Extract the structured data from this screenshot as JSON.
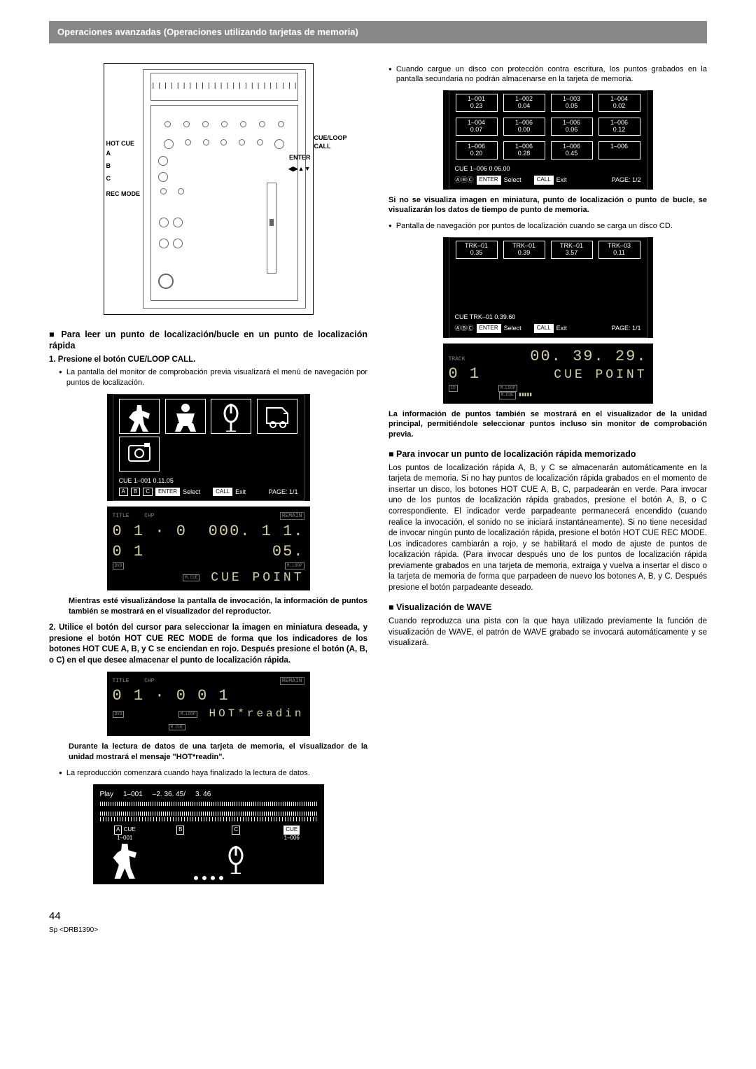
{
  "header": "Operaciones avanzadas (Operaciones utilizando tarjetas de memoria)",
  "device_labels": {
    "hot_cue": "HOT CUE",
    "a": "A",
    "b": "B",
    "c": "C",
    "rec_mode": "REC MODE",
    "cue_loop_call": "CUE/LOOP CALL",
    "enter": "ENTER",
    "arrows": "◀▶▲▼"
  },
  "left": {
    "h1": "■ Para leer un punto de localización/bucle en un punto de localización rápida",
    "step1": "1. Presione el botón CUE/LOOP CALL.",
    "bullet1": "La pantalla del monitor de comprobación previa visualizará el menú de navegación por puntos de localización.",
    "callout_screen": {
      "thumbs": [
        "",
        "",
        "",
        ""
      ],
      "thumbs_camera": "",
      "cue_line": "CUE    1–001   0.11.05",
      "abc": "A B C",
      "enter": "ENTER",
      "select": "Select",
      "call": "CALL",
      "exit": "Exit",
      "page": "PAGE: 1/1"
    },
    "lcd1": {
      "title": "TITLE",
      "chp": "CHP",
      "track_seg": "0 1 · 0 0 1",
      "time_seg": "000. 1 1. 05.",
      "remain": "REMAIN",
      "cue_point": "CUE  POINT",
      "tags": [
        "DVD",
        "M.LOOP",
        "M.CUE"
      ]
    },
    "note1": "Mientras esté visualizándose la pantalla de invocación, la información de puntos también se mostrará en el visualizador del reproductor.",
    "step2": "2. Utilice el botón del cursor para seleccionar la imagen en miniatura deseada, y presione el botón HOT CUE REC MODE de forma que los indicadores de los botones HOT CUE A, B, y C se enciendan en rojo. Después presione el botón (A, B, o C) en el que desee almacenar el punto de localización rápida.",
    "lcd2": {
      "title": "TITLE",
      "chp": "CHP",
      "track_seg": "0 1 · 0 0 1",
      "remain": "REMAIN",
      "msg": "HOT*readin",
      "tags": [
        "DVD",
        "M.LOOP",
        "M.CUE"
      ]
    },
    "note2": "Durante la lectura de datos de una tarjeta de memoria, el visualizador de la unidad mostrará el mensaje \"HOT*readin\".",
    "bullet2": "La reproducción comenzará cuando haya finalizado la lectura de datos.",
    "play_screen": {
      "top": [
        "Play",
        "1–001",
        "–2. 36. 45/",
        "3. 46"
      ],
      "cells": [
        {
          "tag": "A",
          "sub": "CUE",
          "id": "1–001",
          "dancer": true
        },
        {
          "tag": "B",
          "sub": "",
          "id": "",
          "dancer": false
        },
        {
          "tag": "C",
          "sub": "",
          "id": "",
          "dancer": true
        },
        {
          "tag": "CUE",
          "sub": "",
          "id": "1–006",
          "dancer": false
        }
      ]
    }
  },
  "right": {
    "bullet_top": "Cuando cargue un disco con protección contra escritura, los puntos grabados en la pantalla secundaria no podrán almacenarse en la tarjeta de memoria.",
    "grid_screen": {
      "rows": [
        [
          [
            "1–001",
            "0.23"
          ],
          [
            "1–002",
            "0.04"
          ],
          [
            "1–003",
            "0.05"
          ],
          [
            "1–004",
            "0.02"
          ]
        ],
        [
          [
            "1–004",
            "0.07"
          ],
          [
            "1–006",
            "0.00"
          ],
          [
            "1–006",
            "0.06"
          ],
          [
            "1–006",
            "0.12"
          ]
        ],
        [
          [
            "1–006",
            "0.20"
          ],
          [
            "1–006",
            "0.28"
          ],
          [
            "1–006",
            "0.45"
          ],
          [
            "1–006",
            ""
          ]
        ]
      ],
      "cue_line": "CUE    1–006   0.06.00",
      "enter": "ENTER",
      "select": "Select",
      "call": "CALL",
      "exit": "Exit",
      "page": "PAGE: 1/2"
    },
    "note_grid": "Si no se visualiza imagen en miniatura, punto de localización o punto de bucle, se visualizarán los datos de tiempo de punto de memoria.",
    "bullet_cd": "Pantalla de navegación por puntos de localización cuando se carga un disco CD.",
    "cd_screen": {
      "row": [
        [
          "TRK–01",
          "0.35"
        ],
        [
          "TRK–01",
          "0.39"
        ],
        [
          "TRK–01",
          "3.57"
        ],
        [
          "TRK–03",
          "0.11"
        ]
      ],
      "cue_line": "CUE    TRK–01  0.39.60",
      "enter": "ENTER",
      "select": "Select",
      "call": "CALL",
      "exit": "Exit",
      "page": "PAGE: 1/1"
    },
    "lcd_cd": {
      "track_seg": "0 1",
      "time_seg": "00. 39. 29.",
      "cue_point": "CUE  POINT",
      "tags": [
        "CD",
        "M.LOOP",
        "M.CUE"
      ]
    },
    "note_cd": "La información de puntos también se mostrará en el visualizador de la unidad principal, permitiéndole seleccionar puntos incluso sin monitor de comprobación previa.",
    "h2": "■ Para invocar un punto de localización rápida memorizado",
    "body2": "Los puntos de localización rápida A, B, y C se almacenarán automáticamente en la tarjeta de memoria.  Si no hay puntos de localización rápida grabados en el momento de insertar un disco, los botones HOT CUE A, B, C, parpadearán en verde. Para invocar uno de los puntos de localización rápida grabados, presione el botón A, B, o C correspondiente. El indicador verde parpadeante permanecerá encendido (cuando realice la invocación, el sonido no se iniciará instantáneamente). Si no tiene necesidad de invocar ningún punto de localización rápida, presione el botón HOT CUE REC MODE. Los indicadores cambiarán a rojo, y se habilitará el modo de ajuste de puntos de localización rápida. (Para invocar después uno de los puntos de localización rápida previamente grabados en una tarjeta de memoria, extraiga y vuelva a insertar el disco o la tarjeta de memoria de forma que parpadeen de nuevo los botones A, B, y C. Después presione el botón parpadeante deseado.",
    "h3": "■ Visualización de WAVE",
    "body3": "Cuando reproduzca una pista con la que haya utilizado previamente la función de visualización de WAVE, el patrón de WAVE grabado se invocará automáticamente y se visualizará."
  },
  "footer": {
    "page": "44",
    "code": "Sp <DRB1390>"
  },
  "colors": {
    "header_bg": "#888888",
    "screen_bg": "#000000",
    "lcd_text": "#d0cfa0"
  }
}
